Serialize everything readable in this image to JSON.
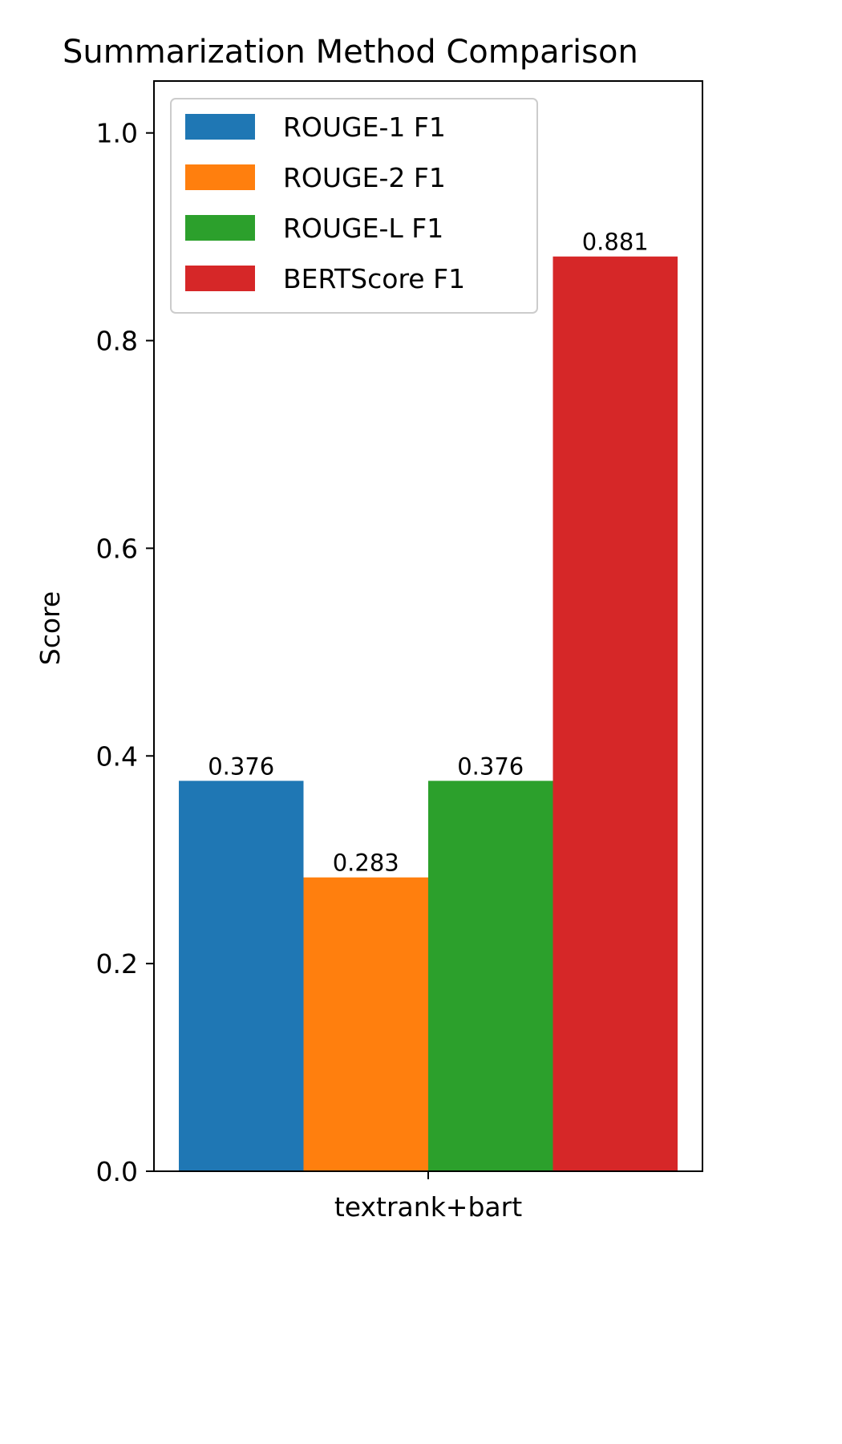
{
  "chart_data": {
    "type": "bar",
    "title": "Summarization Method Comparison",
    "xlabel": "",
    "ylabel": "Score",
    "categories": [
      "textrank+bart"
    ],
    "series": [
      {
        "name": "ROUGE-1 F1",
        "values": [
          0.376
        ],
        "labels": [
          "0.376"
        ],
        "color": "#1f77b4"
      },
      {
        "name": "ROUGE-2 F1",
        "values": [
          0.283
        ],
        "labels": [
          "0.283"
        ],
        "color": "#ff7f0e"
      },
      {
        "name": "ROUGE-L F1",
        "values": [
          0.376
        ],
        "labels": [
          "0.376"
        ],
        "color": "#2ca02c"
      },
      {
        "name": "BERTScore F1",
        "values": [
          0.881
        ],
        "labels": [
          "0.881"
        ],
        "color": "#d62728"
      }
    ],
    "ylim": [
      0,
      1.05
    ],
    "yticks": [
      0.0,
      0.2,
      0.4,
      0.6,
      0.8,
      1.0
    ],
    "ytick_labels": [
      "0.0",
      "0.2",
      "0.4",
      "0.6",
      "0.8",
      "1.0"
    ],
    "grid": false,
    "legend_position": "upper-left"
  }
}
